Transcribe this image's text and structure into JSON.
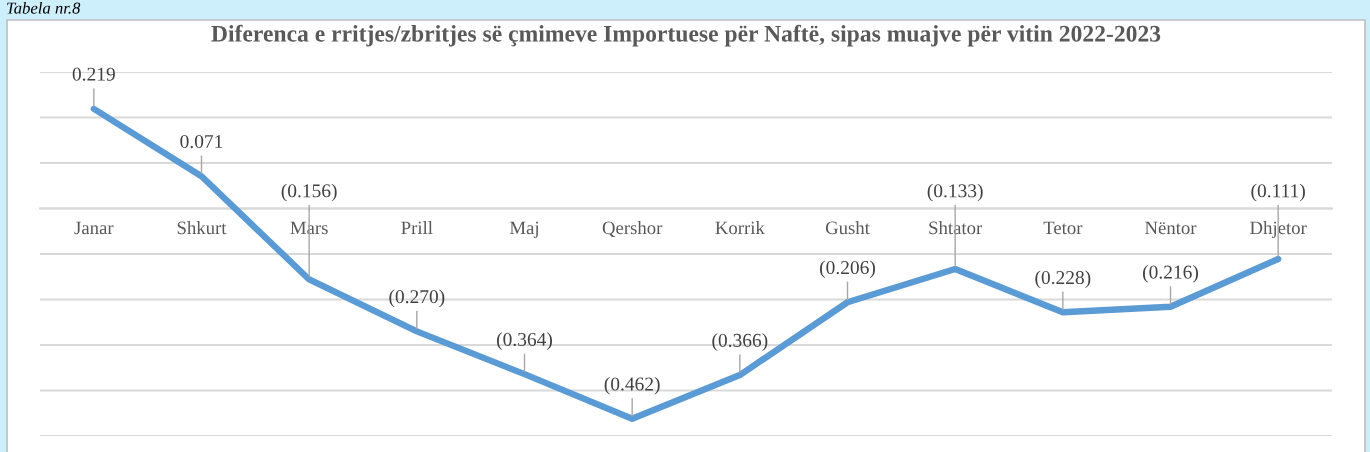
{
  "chart_data": {
    "type": "line",
    "title": "Diferenca e rritjes/zbritjes së çmimeve Importuese për Naftë, sipas muajve për vitin 2022-2023",
    "annotations": [
      "Tabela nr.8"
    ],
    "categories": [
      "Janar",
      "Shkurt",
      "Mars",
      "Prill",
      "Maj",
      "Qershor",
      "Korrik",
      "Gusht",
      "Shtator",
      "Tetor",
      "Nëntor",
      "Dhjetor"
    ],
    "series": [
      {
        "color": "#5b9bd5",
        "values": [
          0.219,
          0.071,
          -0.156,
          -0.27,
          -0.364,
          -0.462,
          -0.366,
          -0.206,
          -0.133,
          -0.228,
          -0.216,
          -0.111
        ],
        "value_labels": [
          "0.219",
          "0.071",
          "(0.156)",
          "(0.270)",
          "(0.364)",
          "(0.462)",
          "(0.366)",
          "(0.206)",
          "(0.133)",
          "(0.228)",
          "(0.216)",
          "(0.111)"
        ]
      }
    ],
    "ylim": [
      -0.5,
      0.3
    ],
    "yticks": [
      {
        "value": -0.5,
        "label": null
      },
      {
        "value": -0.4,
        "label": null
      },
      {
        "value": -0.3,
        "label": null
      },
      {
        "value": -0.2,
        "label": null
      },
      {
        "value": -0.1,
        "label": null
      },
      {
        "value": 0,
        "label": null
      },
      {
        "value": 0.1,
        "label": null
      },
      {
        "value": 0.2,
        "label": null
      },
      {
        "value": 0.3,
        "label": null
      }
    ],
    "grid": "y",
    "tick_labels": "x"
  }
}
